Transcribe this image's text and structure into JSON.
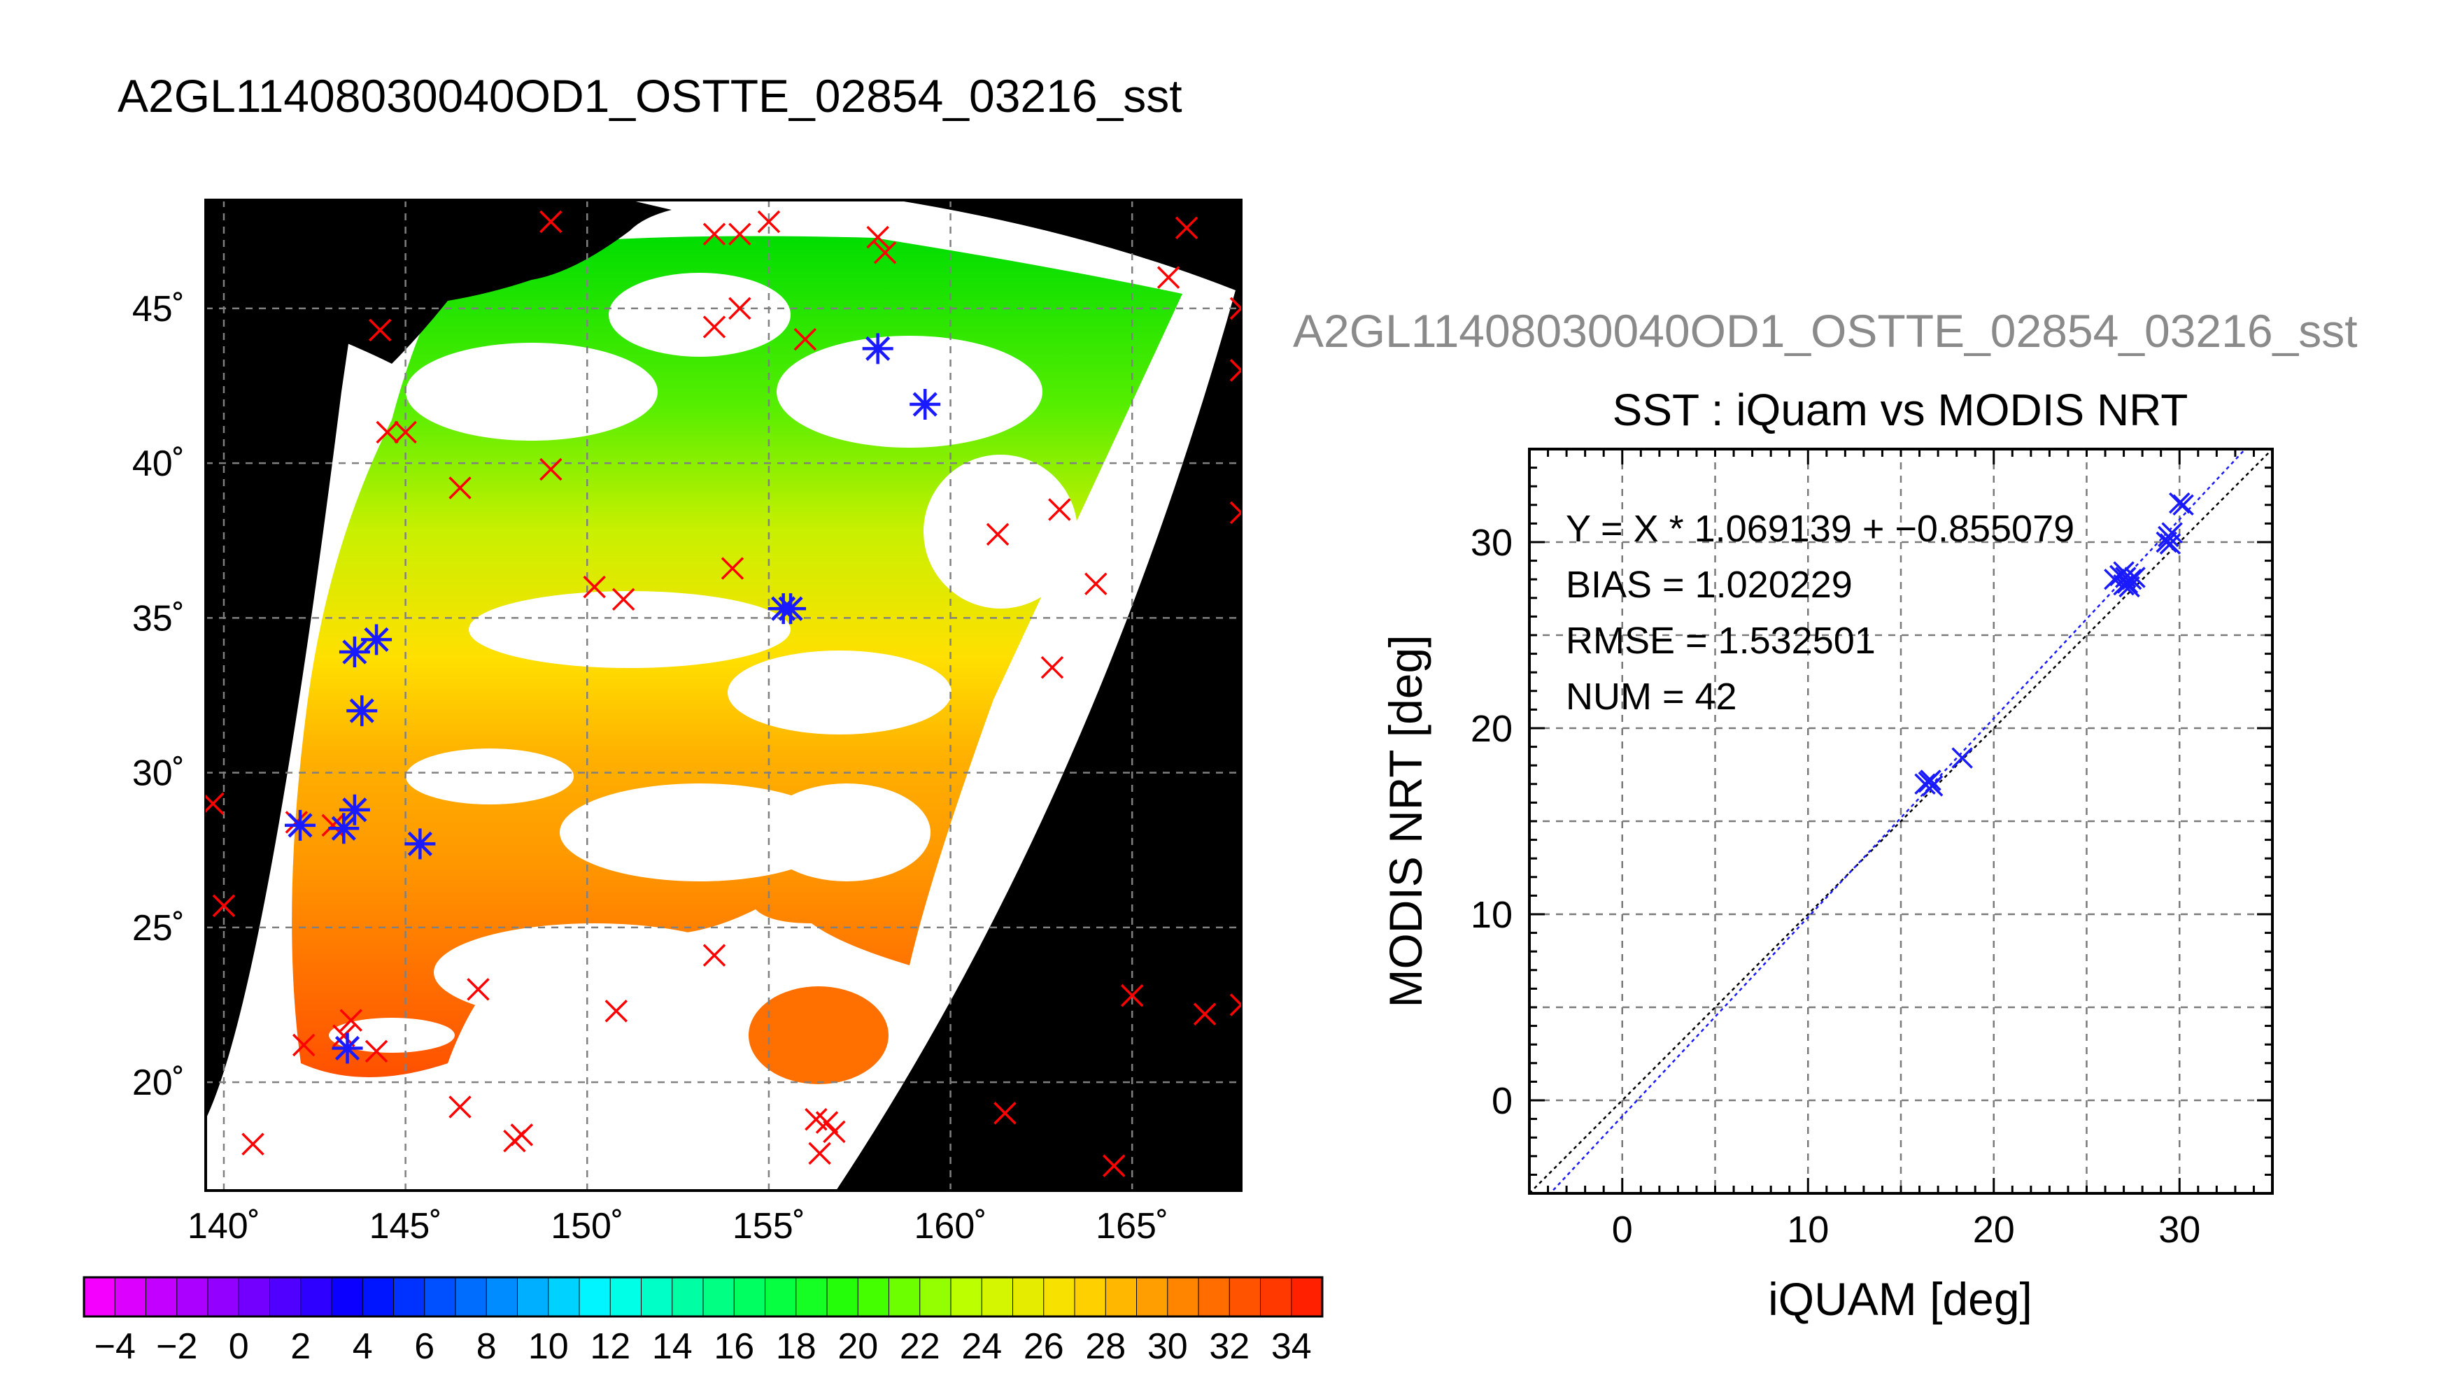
{
  "figure": {
    "title": "A2GL11408030040OD1_OSTTE_02854_03216_sst",
    "subtitle": "A2GL11408030040OD1_OSTTE_02854_03216_sst"
  },
  "chart_data": [
    {
      "type": "heatmap",
      "description_role": "map",
      "xlim": [
        139.5,
        168
      ],
      "ylim": [
        16.5,
        48.5
      ],
      "x_ticks": [
        140,
        145,
        150,
        155,
        160,
        165
      ],
      "y_ticks": [
        20,
        25,
        30,
        35,
        40,
        45
      ],
      "x_tick_labels": [
        "140˚",
        "145˚",
        "150˚",
        "155˚",
        "160˚",
        "165˚"
      ],
      "y_tick_labels": [
        "20˚",
        "25˚",
        "30˚",
        "35˚",
        "40˚",
        "45˚"
      ],
      "grid": true,
      "colorbar": {
        "min": -5,
        "max": 35,
        "tick_labels": [
          "−4",
          "−2",
          "0",
          "2",
          "4",
          "6",
          "8",
          "10",
          "12",
          "14",
          "16",
          "18",
          "20",
          "22",
          "24",
          "26",
          "28",
          "30",
          "32",
          "34"
        ],
        "tick_values": [
          -4,
          -2,
          0,
          2,
          4,
          6,
          8,
          10,
          12,
          14,
          16,
          18,
          20,
          22,
          24,
          26,
          28,
          30,
          32,
          34
        ]
      },
      "red_x_points": [
        [
          149,
          47.8
        ],
        [
          153.5,
          47.4
        ],
        [
          154.2,
          47.4
        ],
        [
          155,
          47.8
        ],
        [
          158,
          47.3
        ],
        [
          158.2,
          46.8
        ],
        [
          166.5,
          47.6
        ],
        [
          166,
          46
        ],
        [
          168,
          45
        ],
        [
          153.5,
          44.4
        ],
        [
          154.2,
          45
        ],
        [
          156,
          44
        ],
        [
          144.3,
          44.3
        ],
        [
          144.5,
          41
        ],
        [
          145,
          41
        ],
        [
          149,
          39.8
        ],
        [
          146.5,
          39.2
        ],
        [
          168,
          43
        ],
        [
          163,
          38.5
        ],
        [
          161.3,
          37.7
        ],
        [
          168,
          38.4
        ],
        [
          154,
          36.6
        ],
        [
          150.2,
          36
        ],
        [
          151,
          35.6
        ],
        [
          164,
          36.1
        ],
        [
          162.8,
          33.4
        ],
        [
          139.7,
          29
        ],
        [
          140,
          25.7
        ],
        [
          142,
          28.4
        ],
        [
          143,
          28.3
        ],
        [
          153.5,
          24.1
        ],
        [
          147,
          23
        ],
        [
          150.8,
          22.3
        ],
        [
          165,
          22.8
        ],
        [
          167,
          22.2
        ],
        [
          168,
          22.5
        ],
        [
          142.2,
          21.2
        ],
        [
          143.3,
          21.5
        ],
        [
          143.5,
          22
        ],
        [
          144.2,
          21
        ],
        [
          146.5,
          19.2
        ],
        [
          148,
          18.1
        ],
        [
          148.2,
          18.3
        ],
        [
          156.3,
          18.8
        ],
        [
          156.6,
          18.7
        ],
        [
          156.8,
          18.4
        ],
        [
          156.4,
          17.7
        ],
        [
          161.5,
          19
        ],
        [
          164.5,
          17.3
        ],
        [
          140.8,
          18
        ]
      ],
      "blue_star_points": [
        [
          158,
          43.7
        ],
        [
          159.3,
          41.9
        ],
        [
          143.6,
          33.9
        ],
        [
          144.2,
          34.3
        ],
        [
          143.8,
          32
        ],
        [
          155.4,
          35.3
        ],
        [
          155.6,
          35.3
        ],
        [
          142.1,
          28.3
        ],
        [
          143.3,
          28.2
        ],
        [
          143.6,
          28.8
        ],
        [
          145.4,
          27.7
        ],
        [
          143.4,
          21.1
        ]
      ]
    },
    {
      "type": "scatter",
      "title": "SST : iQuam vs MODIS NRT",
      "xlabel": "iQUAM [deg]",
      "ylabel": "MODIS NRT [deg]",
      "xlim": [
        -5,
        35
      ],
      "ylim": [
        -5,
        35
      ],
      "x_ticks": [
        0,
        10,
        20,
        30
      ],
      "y_ticks": [
        0,
        10,
        20,
        30
      ],
      "grid": true,
      "annotations": [
        "Y = X * 1.069139 + −0.855079",
        "BIAS = 1.020229",
        "RMSE = 1.532501",
        "NUM = 42"
      ],
      "fit": {
        "slope": 1.069139,
        "intercept": -0.855079
      },
      "series": [
        {
          "marker": "x",
          "color": "#1a1aff",
          "x": [
            16.3,
            16.5,
            16.7,
            16.6,
            18.3,
            26.5,
            26.8,
            27.0,
            27.1,
            27.2,
            27.4,
            27.6,
            27.0,
            27.3,
            29.3,
            29.4,
            29.5,
            29.6,
            30.0,
            30.2
          ],
          "y": [
            17.0,
            17.1,
            16.9,
            17.2,
            18.4,
            28.0,
            28.2,
            27.7,
            28.1,
            27.8,
            28.0,
            28.1,
            28.4,
            27.6,
            30.0,
            30.3,
            29.9,
            30.5,
            32.1,
            32.0
          ]
        }
      ]
    }
  ],
  "colors": {
    "map_black": "#000000",
    "red_marker": "#ff0000",
    "blue_marker": "#1a1aff",
    "grid": "#808080"
  }
}
